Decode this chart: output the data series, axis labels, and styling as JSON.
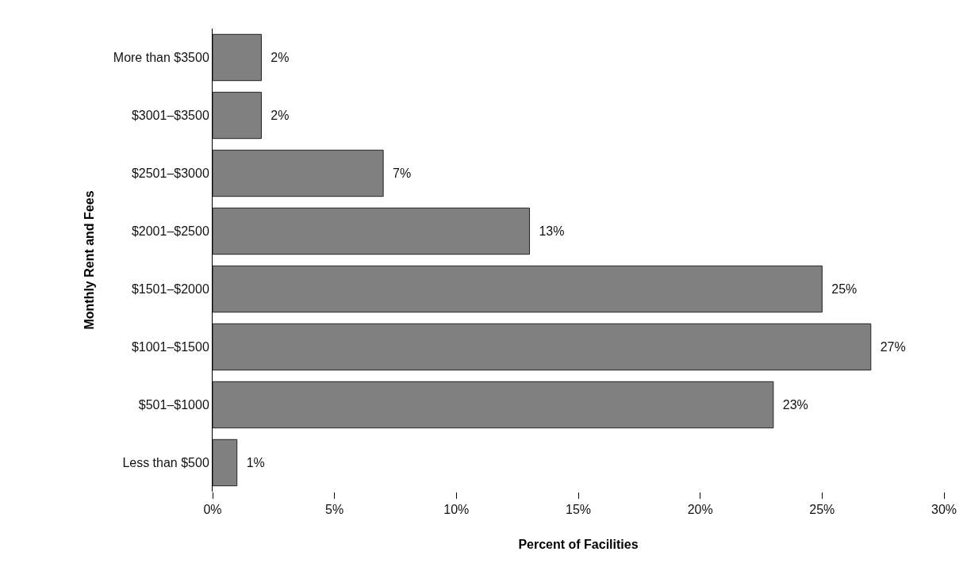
{
  "chart_data": {
    "type": "bar",
    "orientation": "horizontal",
    "xlabel": "Percent of Facilities",
    "ylabel": "Monthly Rent and Fees",
    "categories": [
      "More than $3500",
      "$3001–$3500",
      "$2501–$3000",
      "$2001–$2500",
      "$1501–$2000",
      "$1001–$1500",
      "$501–$1000",
      "Less than $500"
    ],
    "values": [
      2,
      2,
      7,
      13,
      25,
      27,
      23,
      1
    ],
    "value_labels": [
      "2%",
      "2%",
      "7%",
      "13%",
      "25%",
      "27%",
      "23%",
      "1%"
    ],
    "color": "#808080",
    "xlim": [
      0,
      30
    ],
    "xticks": [
      {
        "value": 0,
        "label": "0%"
      },
      {
        "value": 5,
        "label": "5%"
      },
      {
        "value": 10,
        "label": "10%"
      },
      {
        "value": 15,
        "label": "15%"
      },
      {
        "value": 20,
        "label": "20%"
      },
      {
        "value": 25,
        "label": "25%"
      },
      {
        "value": 30,
        "label": "30%"
      }
    ]
  }
}
